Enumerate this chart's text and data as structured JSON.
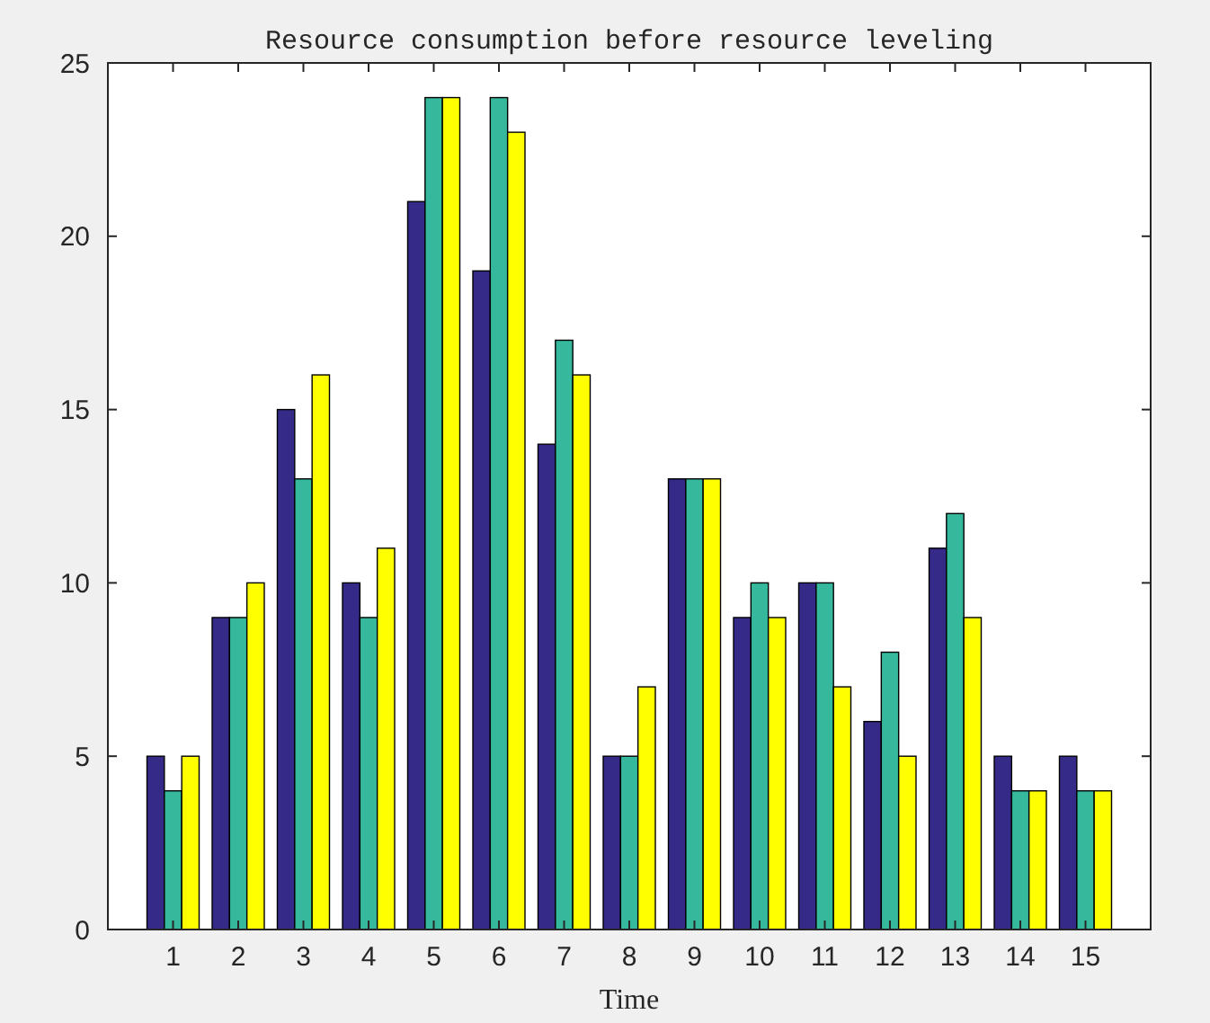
{
  "chart_data": {
    "type": "bar",
    "title": "Resource consumption before resource leveling",
    "xlabel": "Time",
    "x": [
      1,
      2,
      3,
      4,
      5,
      6,
      7,
      8,
      9,
      10,
      11,
      12,
      13,
      14,
      15
    ],
    "series": [
      {
        "color": "#352a87",
        "values": [
          5,
          9,
          15,
          10,
          21,
          19,
          14,
          5,
          13,
          9,
          10,
          6,
          11,
          5,
          5
        ]
      },
      {
        "color": "#36b89d",
        "values": [
          4,
          9,
          13,
          9,
          24,
          24,
          17,
          5,
          13,
          10,
          10,
          8,
          12,
          4,
          4
        ]
      },
      {
        "color": "#ffff00",
        "values": [
          5,
          10,
          16,
          11,
          24,
          23,
          16,
          7,
          13,
          9,
          7,
          5,
          9,
          4,
          4
        ]
      }
    ],
    "xlim": [
      0,
      16
    ],
    "xticks": [
      1,
      2,
      3,
      4,
      5,
      6,
      7,
      8,
      9,
      10,
      11,
      12,
      13,
      14,
      15
    ],
    "ylim": [
      0,
      25
    ],
    "yticks": [
      0,
      5,
      10,
      15,
      20,
      25
    ]
  }
}
